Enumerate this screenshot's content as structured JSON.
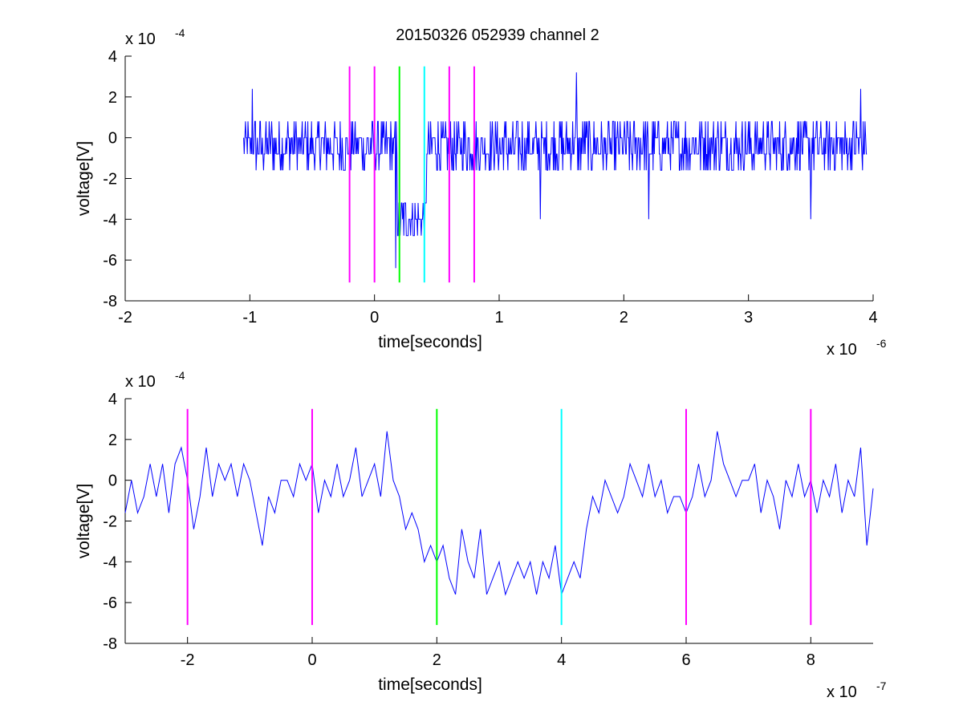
{
  "figure": {
    "title": "20150326 052939 channel 2"
  },
  "chart_data": [
    {
      "type": "line",
      "title": "20150326 052939 channel 2",
      "xlabel": "time[seconds]",
      "ylabel": "voltage[V]",
      "x_multiplier": "x 10",
      "x_exponent": "-6",
      "y_multiplier": "x 10",
      "y_exponent": "-4",
      "xlim": [
        -2,
        4
      ],
      "ylim": [
        -8,
        4
      ],
      "xticks": [
        -2,
        -1,
        0,
        1,
        2,
        3,
        4
      ],
      "xtick_labels": [
        "-2",
        "-1",
        "0",
        "1",
        "2",
        "3",
        "4"
      ],
      "yticks": [
        -8,
        -6,
        -4,
        -2,
        0,
        2,
        4
      ],
      "ytick_labels": [
        "-8",
        "-6",
        "-4",
        "-2",
        "0",
        "2",
        "4"
      ],
      "grid": false,
      "series": [
        {
          "color": "#0000ff",
          "x_start": -1.05,
          "x_end": 3.95,
          "segments": [
            {
              "from": -1.05,
              "to": 0.18,
              "baseline": -0.4,
              "noise": 1.2
            },
            {
              "from": 0.18,
              "to": 0.42,
              "baseline": -4.0,
              "noise": 1.0
            },
            {
              "from": 0.42,
              "to": 3.95,
              "baseline": -0.4,
              "noise": 1.2
            }
          ],
          "peaks": [
            {
              "x": -0.98,
              "y": 2.4
            },
            {
              "x": 0.17,
              "y": -6.4
            },
            {
              "x": 1.33,
              "y": -4.0
            },
            {
              "x": 1.62,
              "y": 3.2
            },
            {
              "x": 2.2,
              "y": -4.0
            },
            {
              "x": 3.5,
              "y": -4.0
            },
            {
              "x": 3.9,
              "y": 2.4
            }
          ]
        }
      ],
      "markers": [
        {
          "x": -0.2,
          "color": "#ff00ff",
          "y_range": [
            -7.1,
            3.5
          ]
        },
        {
          "x": 0.0,
          "color": "#ff00ff",
          "y_range": [
            -7.1,
            3.5
          ]
        },
        {
          "x": 0.2,
          "color": "#00ff00",
          "y_range": [
            -7.1,
            3.5
          ]
        },
        {
          "x": 0.4,
          "color": "#00ffff",
          "y_range": [
            -7.1,
            3.5
          ]
        },
        {
          "x": 0.6,
          "color": "#ff00ff",
          "y_range": [
            -7.1,
            3.5
          ]
        },
        {
          "x": 0.8,
          "color": "#ff00ff",
          "y_range": [
            -7.1,
            3.5
          ]
        }
      ]
    },
    {
      "type": "line",
      "title": "",
      "xlabel": "time[seconds]",
      "ylabel": "voltage[V]",
      "x_multiplier": "x 10",
      "x_exponent": "-7",
      "y_multiplier": "x 10",
      "y_exponent": "-4",
      "xlim": [
        -3,
        9
      ],
      "ylim": [
        -8,
        4
      ],
      "xticks": [
        -2,
        0,
        2,
        4,
        6,
        8
      ],
      "xtick_labels": [
        "-2",
        "0",
        "2",
        "4",
        "6",
        "8"
      ],
      "yticks": [
        -8,
        -6,
        -4,
        -2,
        0,
        2,
        4
      ],
      "ytick_labels": [
        "-8",
        "-6",
        "-4",
        "-2",
        "0",
        "2",
        "4"
      ],
      "grid": false,
      "series": [
        {
          "color": "#0000ff",
          "x": [
            -3.0,
            -2.9,
            -2.8,
            -2.7,
            -2.6,
            -2.5,
            -2.4,
            -2.3,
            -2.2,
            -2.1,
            -2.0,
            -1.9,
            -1.8,
            -1.7,
            -1.6,
            -1.5,
            -1.4,
            -1.3,
            -1.2,
            -1.1,
            -1.0,
            -0.9,
            -0.8,
            -0.7,
            -0.6,
            -0.5,
            -0.4,
            -0.3,
            -0.2,
            -0.1,
            0.0,
            0.1,
            0.2,
            0.3,
            0.4,
            0.5,
            0.6,
            0.7,
            0.8,
            0.9,
            1.0,
            1.1,
            1.2,
            1.3,
            1.4,
            1.5,
            1.6,
            1.7,
            1.8,
            1.9,
            2.0,
            2.1,
            2.2,
            2.3,
            2.4,
            2.5,
            2.6,
            2.7,
            2.8,
            2.9,
            3.0,
            3.1,
            3.2,
            3.3,
            3.4,
            3.5,
            3.6,
            3.7,
            3.8,
            3.9,
            4.0,
            4.1,
            4.2,
            4.3,
            4.4,
            4.5,
            4.6,
            4.7,
            4.8,
            4.9,
            5.0,
            5.1,
            5.2,
            5.3,
            5.4,
            5.5,
            5.6,
            5.7,
            5.8,
            5.9,
            6.0,
            6.1,
            6.2,
            6.3,
            6.4,
            6.5,
            6.6,
            6.7,
            6.8,
            6.9,
            7.0,
            7.1,
            7.2,
            7.3,
            7.4,
            7.5,
            7.6,
            7.7,
            7.8,
            7.9,
            8.0,
            8.1,
            8.2,
            8.3,
            8.4,
            8.5,
            8.6,
            8.7,
            8.8,
            8.9,
            9.0
          ],
          "values": [
            -1.6,
            0.0,
            -1.6,
            -0.8,
            0.8,
            -0.8,
            0.8,
            -1.6,
            0.8,
            1.6,
            0.0,
            -2.4,
            -0.8,
            1.6,
            -0.8,
            0.8,
            0.0,
            0.8,
            -0.8,
            0.8,
            0.0,
            -1.6,
            -3.2,
            -0.8,
            -1.6,
            0.0,
            0.0,
            -0.8,
            0.8,
            0.0,
            0.8,
            -1.6,
            0.0,
            -0.8,
            0.8,
            -0.8,
            0.0,
            1.6,
            -0.8,
            0.0,
            0.8,
            -0.8,
            2.4,
            0.0,
            -0.8,
            -2.4,
            -1.6,
            -2.4,
            -4.0,
            -3.2,
            -4.0,
            -3.2,
            -4.8,
            -5.6,
            -2.4,
            -4.0,
            -4.8,
            -2.4,
            -5.6,
            -4.8,
            -4.0,
            -5.6,
            -4.8,
            -4.0,
            -4.8,
            -4.0,
            -5.6,
            -4.0,
            -4.8,
            -3.2,
            -5.6,
            -4.8,
            -4.0,
            -4.8,
            -2.4,
            -0.8,
            -1.6,
            0.0,
            -0.8,
            -1.6,
            -0.8,
            0.8,
            0.0,
            -0.8,
            0.8,
            -0.8,
            0.0,
            -1.6,
            -0.8,
            -0.8,
            -1.6,
            -0.8,
            0.8,
            -0.8,
            0.0,
            2.4,
            0.8,
            0.0,
            -0.8,
            0.0,
            0.0,
            0.8,
            -1.6,
            0.0,
            -0.8,
            -2.4,
            0.0,
            -0.8,
            0.8,
            -0.8,
            0.0,
            -1.6,
            0.0,
            -0.8,
            0.8,
            -1.6,
            0.0,
            -0.8,
            1.6,
            -3.2,
            -0.4
          ]
        }
      ],
      "markers": [
        {
          "x": -2.0,
          "color": "#ff00ff",
          "y_range": [
            -7.1,
            3.5
          ]
        },
        {
          "x": 0.0,
          "color": "#ff00ff",
          "y_range": [
            -7.1,
            3.5
          ]
        },
        {
          "x": 2.0,
          "color": "#00ff00",
          "y_range": [
            -7.1,
            3.5
          ]
        },
        {
          "x": 4.0,
          "color": "#00ffff",
          "y_range": [
            -7.1,
            3.5
          ]
        },
        {
          "x": 6.0,
          "color": "#ff00ff",
          "y_range": [
            -7.1,
            3.5
          ]
        },
        {
          "x": 8.0,
          "color": "#ff00ff",
          "y_range": [
            -7.1,
            3.5
          ]
        }
      ]
    }
  ]
}
